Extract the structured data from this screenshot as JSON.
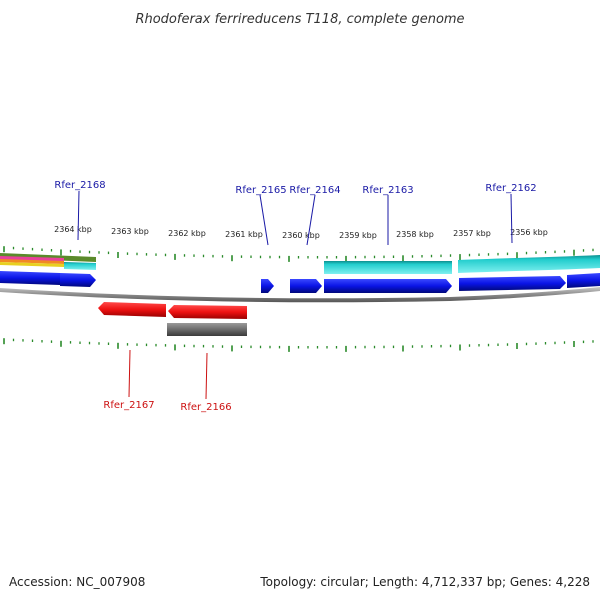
{
  "title": "Rhodoferax ferrireducens T118, complete genome",
  "footer": {
    "accession": "Accession: NC_007908",
    "summary": "Topology: circular; Length: 4,712,337 bp; Genes: 4,228"
  },
  "colors": {
    "forward_label": "#1a1aa6",
    "reverse_label": "#cc1111",
    "forward_cds": "#0a14e6",
    "reverse_cds": "#ee1111",
    "reverse_grey": "#6b6b6b",
    "tick": "#2a8a2a",
    "backbone": "#888888",
    "cyan_feature": "#20d0d0"
  },
  "kbp_ticks": [
    "2364 kbp",
    "2363 kbp",
    "2362 kbp",
    "2361 kbp",
    "2360 kbp",
    "2359 kbp",
    "2358 kbp",
    "2357 kbp",
    "2356 kbp"
  ],
  "forward_genes": [
    "Rfer_2168",
    "Rfer_2165",
    "Rfer_2164",
    "Rfer_2163",
    "Rfer_2162"
  ],
  "reverse_genes": [
    "Rfer_2167",
    "Rfer_2166"
  ]
}
